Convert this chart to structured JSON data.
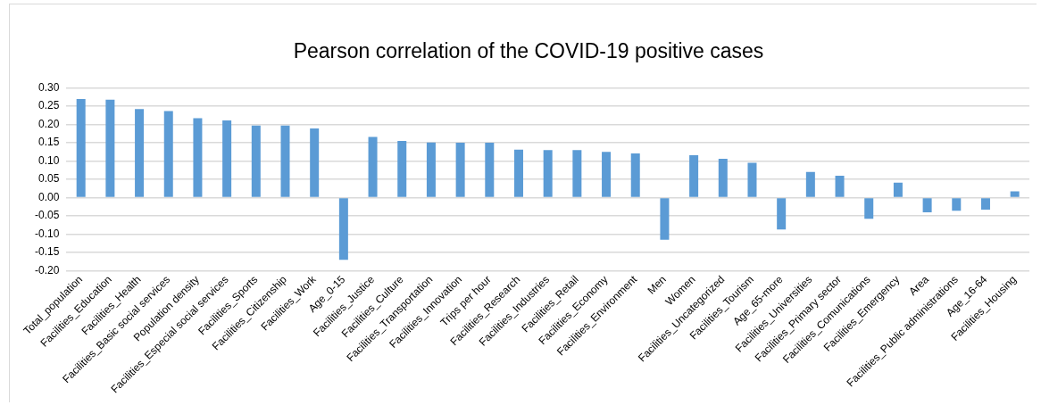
{
  "chart_data": {
    "type": "bar",
    "title": "Pearson correlation of the COVID-19 positive cases",
    "categories": [
      "Total_population",
      "Facilities_Education",
      "Facilities_Health",
      "Facilities_Basic social services",
      "Population density",
      "Facilities_Especial social services",
      "Facilities_Sports",
      "Facilities_Citizenship",
      "Facilities_Work",
      "Age_0-15",
      "Facilities_Justice",
      "Facilities_Culture",
      "Facilities_Transportation",
      "Facilities_Innovation",
      "Trips per hour",
      "Facilities_Research",
      "Facilities_Industries",
      "Facilities_Retail",
      "Facilities_Economy",
      "Facilities_Environment",
      "Men",
      "Women",
      "Facilities_Uncategorized",
      "Facilities_Tourism",
      "Age_65-more",
      "Facilities_Universities",
      "Facilities_Primary sector",
      "Facilities_Comunications",
      "Facilities_Emergency",
      "Area",
      "Facilities_Public administrations",
      "Age_16-64",
      "Facilities_Housing"
    ],
    "values": [
      0.27,
      0.268,
      0.242,
      0.237,
      0.217,
      0.211,
      0.197,
      0.197,
      0.189,
      -0.17,
      0.166,
      0.155,
      0.151,
      0.15,
      0.15,
      0.131,
      0.13,
      0.13,
      0.125,
      0.121,
      -0.115,
      0.116,
      0.106,
      0.095,
      -0.087,
      0.07,
      0.06,
      -0.058,
      0.041,
      -0.04,
      -0.036,
      -0.033,
      0.017
    ],
    "color": "#5b9bd5",
    "ylim": [
      -0.2,
      0.3
    ],
    "yticks": [
      {
        "value": -0.2,
        "label": "-0.20"
      },
      {
        "value": -0.15,
        "label": "-0.15"
      },
      {
        "value": -0.1,
        "label": "-0.10"
      },
      {
        "value": -0.05,
        "label": "-0.05"
      },
      {
        "value": 0,
        "label": "0.00"
      },
      {
        "value": 0.05,
        "label": "0.05"
      },
      {
        "value": 0.1,
        "label": "0.10"
      },
      {
        "value": 0.15,
        "label": "0.15"
      },
      {
        "value": 0.2,
        "label": "0.20"
      },
      {
        "value": 0.25,
        "label": "0.25"
      },
      {
        "value": 0.3,
        "label": "0.30"
      }
    ],
    "grid": "y",
    "legend": false
  }
}
